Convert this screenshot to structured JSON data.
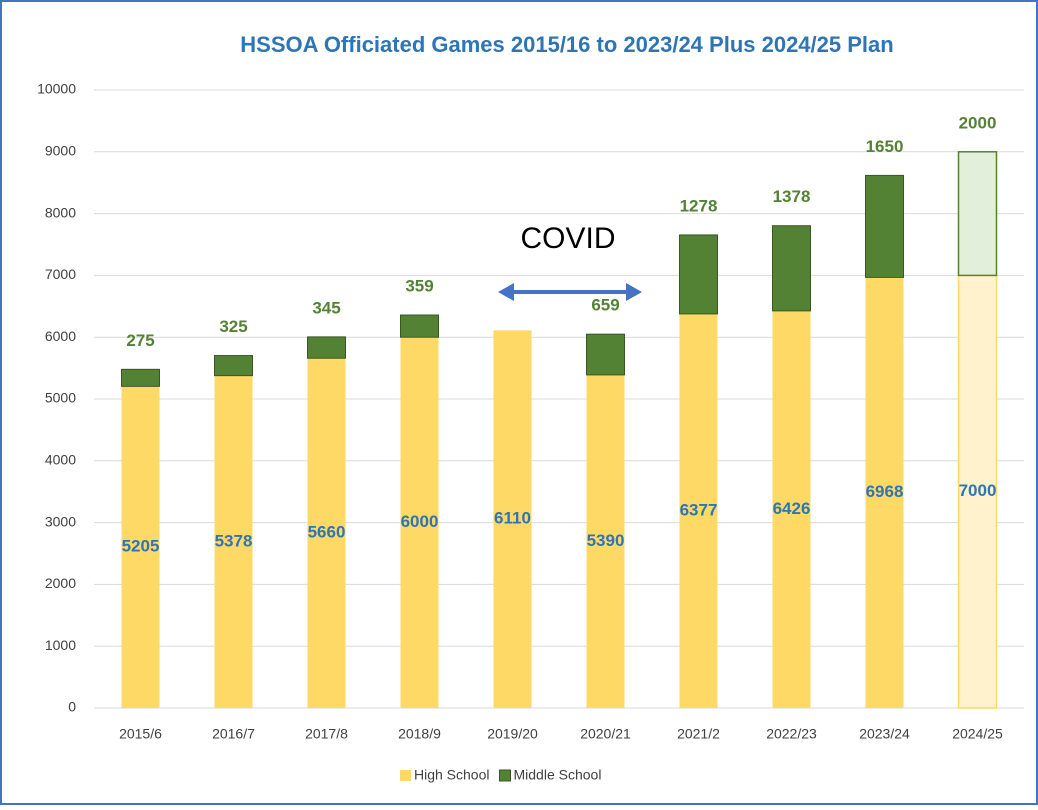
{
  "chart_data": {
    "type": "stacked_bar",
    "title": "HSSOA Officiated Games 2015/16 to 2023/24 Plus 2024/25 Plan",
    "categories": [
      "2015/6",
      "2016/7",
      "2017/8",
      "2018/9",
      "2019/20",
      "2020/21",
      "2021/2",
      "2022/23",
      "2023/24",
      "2024/25"
    ],
    "series": [
      {
        "name": "High School",
        "color": "#ffd966",
        "label_color": "#2e75b6",
        "colors": [
          "#ffd966",
          "#ffd966",
          "#ffd966",
          "#ffd966",
          "#ffd966",
          "#ffd966",
          "#ffd966",
          "#ffd966",
          "#ffd966",
          "#fff2cc"
        ],
        "values": [
          5205,
          5378,
          5660,
          6000,
          6110,
          5390,
          6377,
          6426,
          6968,
          7000
        ]
      },
      {
        "name": "Middle School",
        "color": "#548235",
        "label_color": "#548235",
        "colors": [
          "#548235",
          "#548235",
          "#548235",
          "#548235",
          "#548235",
          "#548235",
          "#548235",
          "#548235",
          "#548235",
          "#e2efda"
        ],
        "values": [
          275,
          325,
          345,
          359,
          null,
          659,
          1278,
          1378,
          1650,
          2000
        ]
      }
    ],
    "annotations": [
      {
        "text": "COVID"
      }
    ],
    "ylim": [
      0,
      10000
    ],
    "yticks": [
      0,
      1000,
      2000,
      3000,
      4000,
      5000,
      6000,
      7000,
      8000,
      9000,
      10000
    ],
    "grid": true,
    "legend": "bottom"
  }
}
